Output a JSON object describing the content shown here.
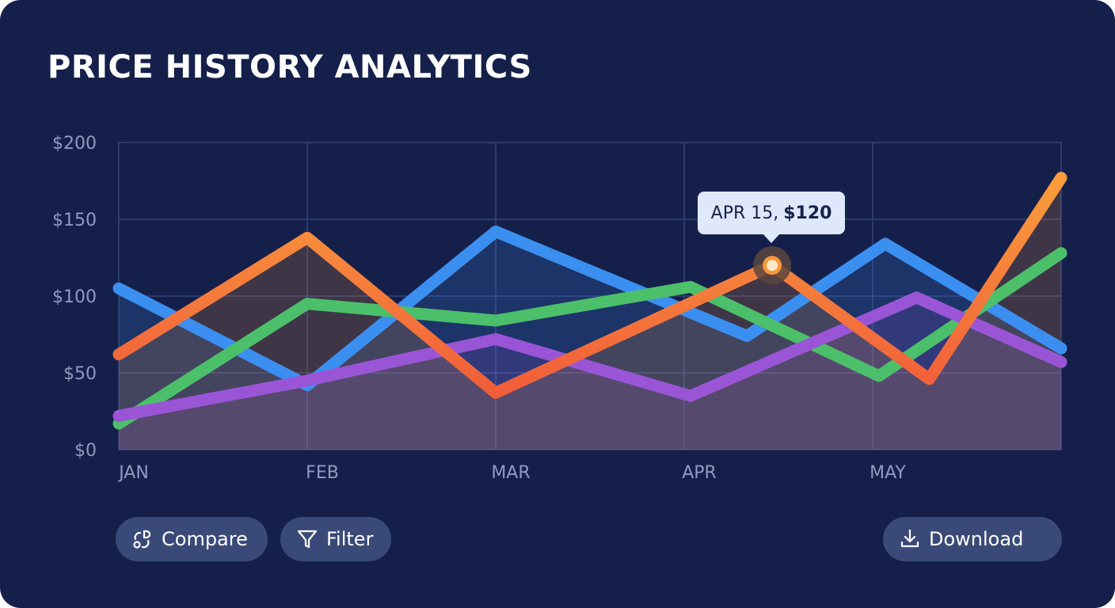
{
  "title": "PRICE HISTORY ANALYTICS",
  "chart_data": {
    "type": "line",
    "title": "PRICE HISTORY ANALYTICS",
    "xlabel": "",
    "ylabel": "",
    "x_ticks": [
      "JAN",
      "FEB",
      "MAR",
      "APR",
      "MAY"
    ],
    "y_ticks": [
      "$0",
      "$50",
      "$100",
      "$150",
      "$200"
    ],
    "ylim": [
      0,
      200
    ],
    "xlim": [
      "Jan 1",
      "Jun 1"
    ],
    "grid": true,
    "legend": "none",
    "series": [
      {
        "color": "#3b8ff0",
        "points": [
          [
            "Jan 1",
            105
          ],
          [
            "Feb 1",
            42
          ],
          [
            "Mar 1",
            142
          ],
          [
            "Apr 11",
            74
          ],
          [
            "May 3",
            134
          ],
          [
            "Jun 1",
            66
          ]
        ]
      },
      {
        "color": "#4cbf6a",
        "points": [
          [
            "Jan 1",
            17
          ],
          [
            "Feb 1",
            95
          ],
          [
            "Mar 1",
            84
          ],
          [
            "Apr 2",
            106
          ],
          [
            "May 2",
            48
          ],
          [
            "Jun 1",
            128
          ]
        ]
      },
      {
        "color": "#9a55d6",
        "points": [
          [
            "Jan 1",
            22
          ],
          [
            "Feb 1",
            45
          ],
          [
            "Mar 1",
            72
          ],
          [
            "Apr 2",
            35
          ],
          [
            "May 8",
            99
          ],
          [
            "Jun 1",
            57
          ]
        ]
      },
      {
        "color": "#f7963a",
        "points": [
          [
            "Jan 1",
            62
          ],
          [
            "Feb 1",
            138
          ],
          [
            "Mar 1",
            37
          ],
          [
            "Apr 15",
            120
          ],
          [
            "May 10",
            46
          ],
          [
            "Jun 1",
            177
          ]
        ]
      }
    ],
    "annotation": {
      "date_label": "APR 15,",
      "value_label": "$120",
      "series": 3,
      "point": 3
    }
  },
  "buttons": {
    "compare": "Compare",
    "filter": "Filter",
    "download": "Download"
  }
}
